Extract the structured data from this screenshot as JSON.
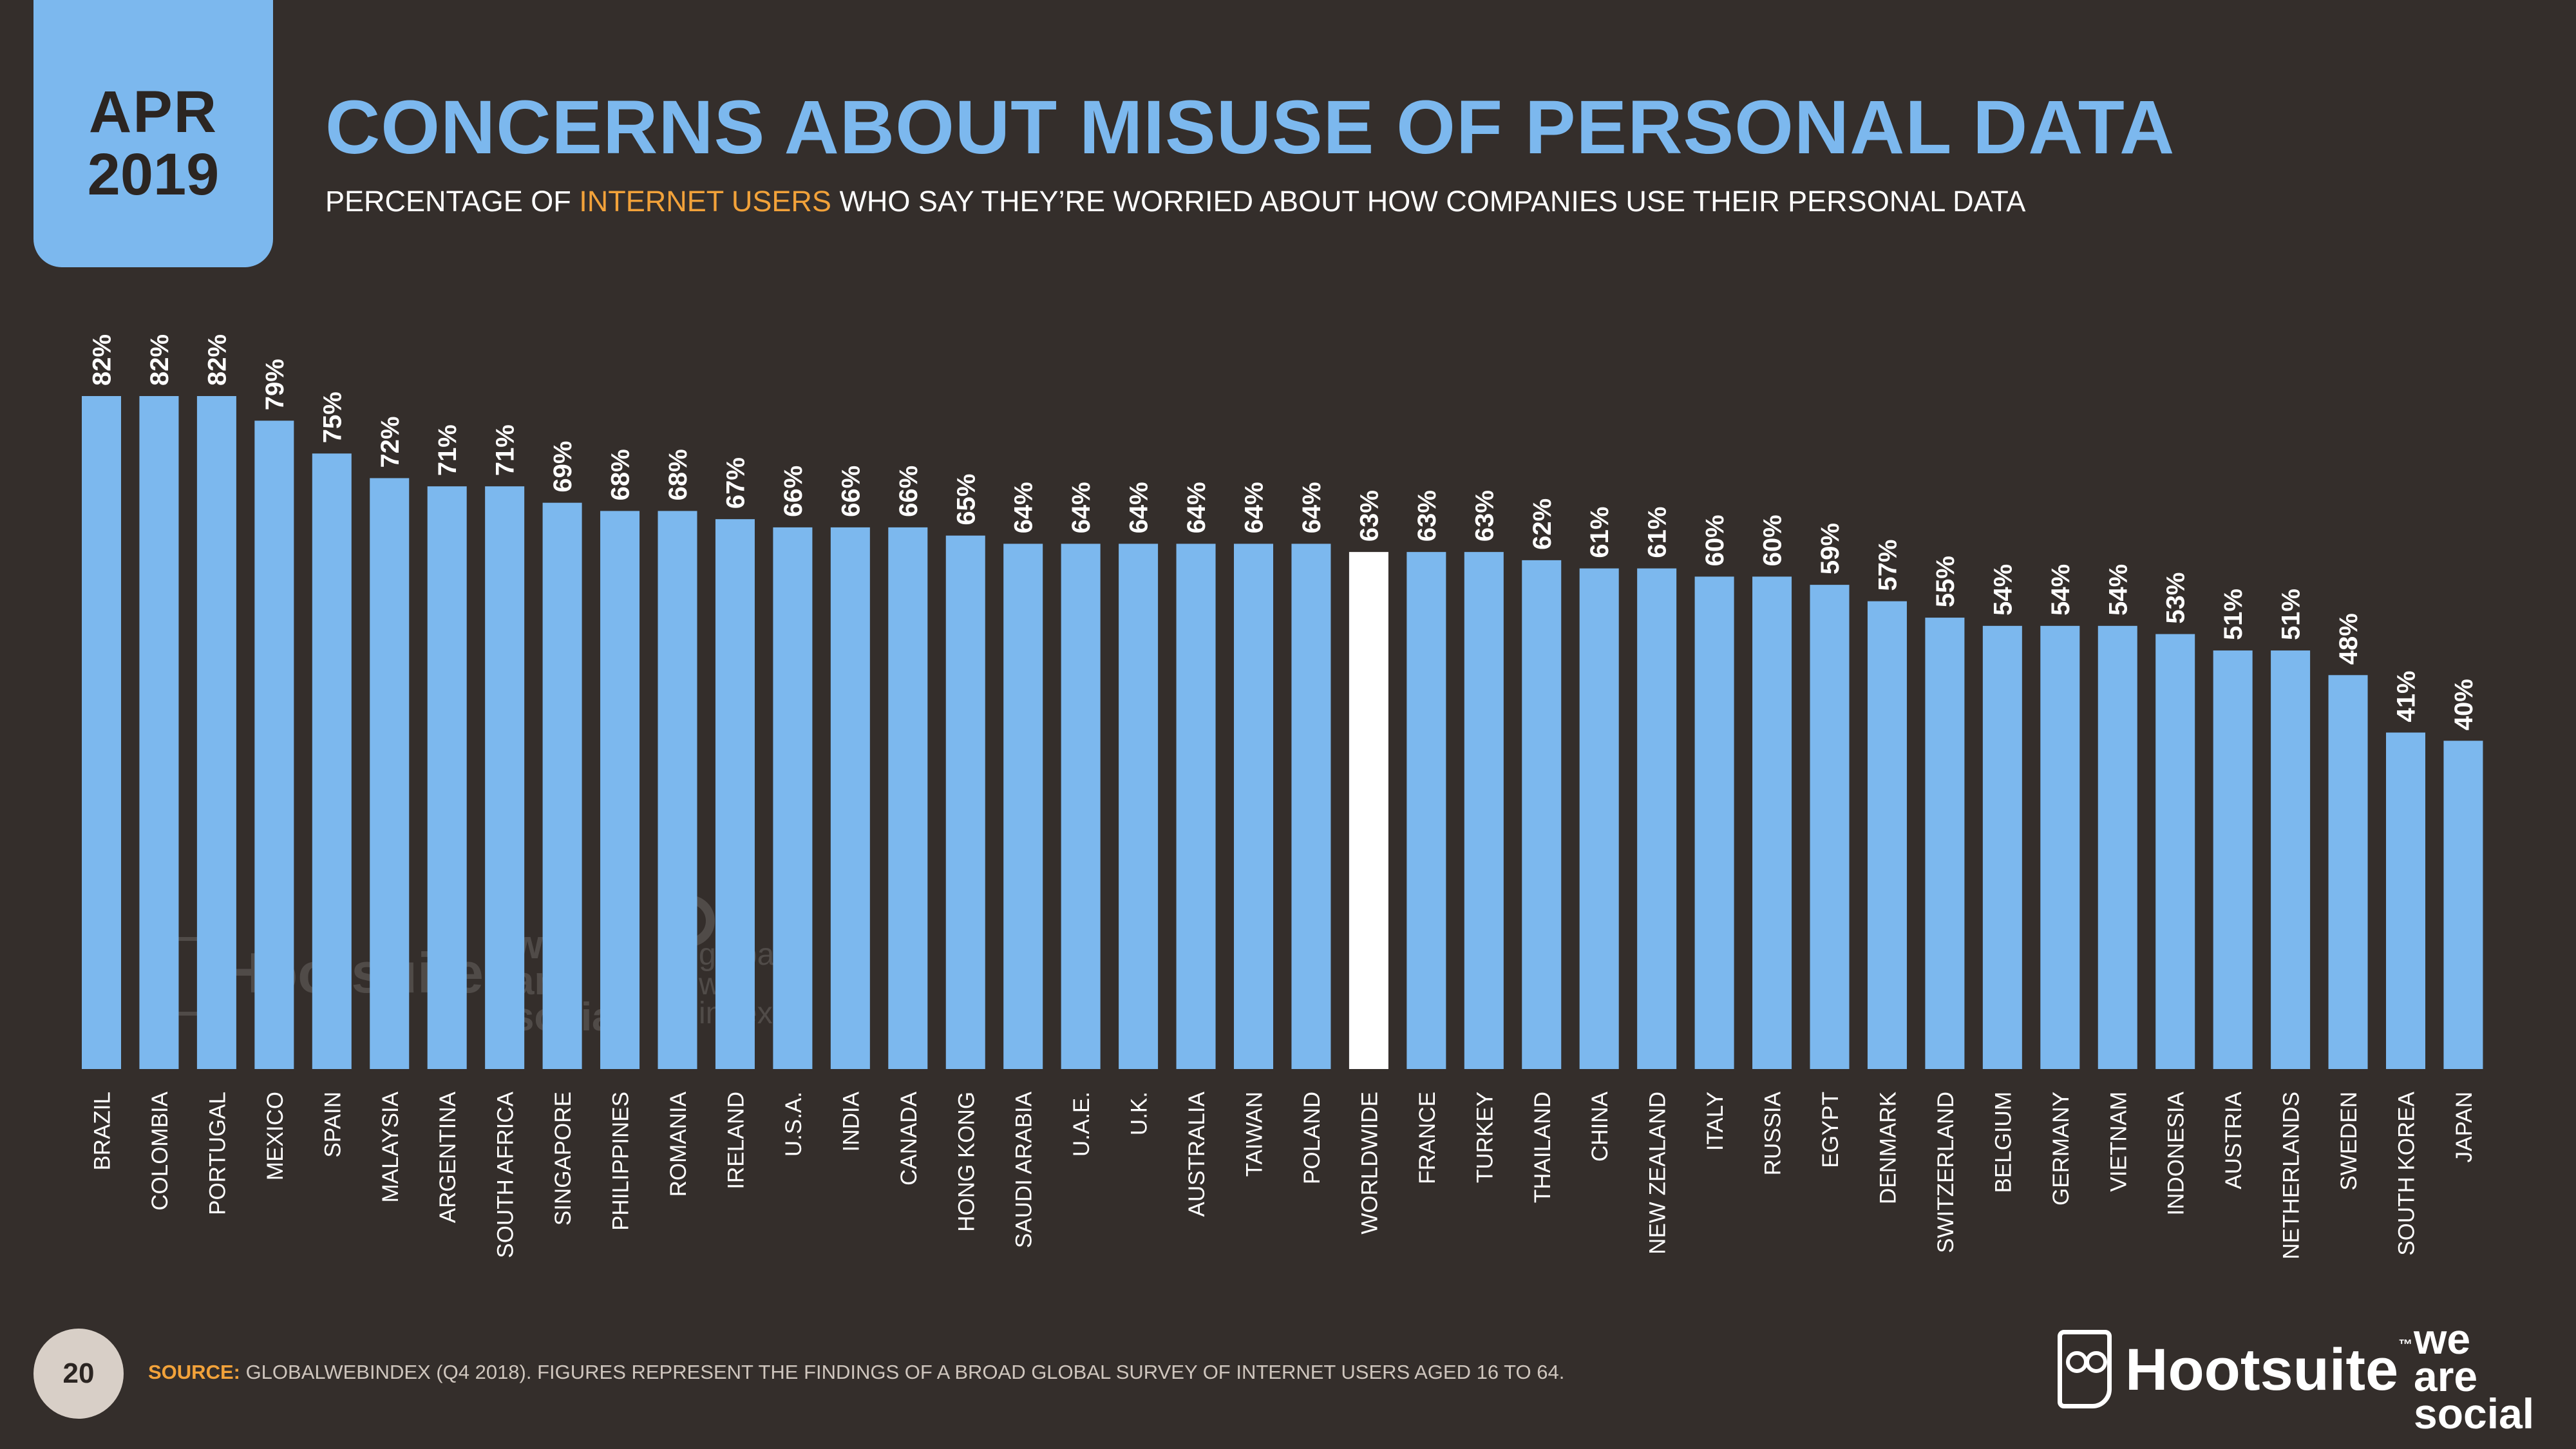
{
  "date_tab": {
    "month": "APR",
    "year": "2019"
  },
  "title": "CONCERNS ABOUT MISUSE OF PERSONAL DATA",
  "subtitle": {
    "before": "PERCENTAGE OF ",
    "highlight": "INTERNET USERS",
    "after": " WHO SAY THEY’RE WORRIED ABOUT HOW COMPANIES USE THEIR PERSONAL DATA"
  },
  "watermarks": {
    "hootsuite": "Hootsuite",
    "we_are_social": [
      "we",
      "are",
      "social"
    ],
    "globalwebindex": [
      "global",
      "web",
      "index"
    ]
  },
  "footer": {
    "page_number": "20",
    "source_label": "SOURCE:",
    "source_text": " GLOBALWEBINDEX (Q4 2018). FIGURES REPRESENT THE FINDINGS OF A BROAD GLOBAL SURVEY OF INTERNET USERS AGED 16 TO 64.",
    "logo_hootsuite": "Hootsuite",
    "logo_tm": "™",
    "logo_was": [
      "we",
      "are",
      "social"
    ]
  },
  "colors": {
    "bar": "#7cb8ee",
    "highlight_bar": "#ffffff",
    "background": "#342e2b",
    "accent": "#f2a23a"
  },
  "chart_data": {
    "type": "bar",
    "title": "CONCERNS ABOUT MISUSE OF PERSONAL DATA",
    "unit": "%",
    "highlight": "WORLDWIDE",
    "categories": [
      "BRAZIL",
      "COLOMBIA",
      "PORTUGAL",
      "MEXICO",
      "SPAIN",
      "MALAYSIA",
      "ARGENTINA",
      "SOUTH AFRICA",
      "SINGAPORE",
      "PHILIPPINES",
      "ROMANIA",
      "IRELAND",
      "U.S.A.",
      "INDIA",
      "CANADA",
      "HONG KONG",
      "SAUDI ARABIA",
      "U.A.E.",
      "U.K.",
      "AUSTRALIA",
      "TAIWAN",
      "POLAND",
      "WORLDWIDE",
      "FRANCE",
      "TURKEY",
      "THAILAND",
      "CHINA",
      "NEW ZEALAND",
      "ITALY",
      "RUSSIA",
      "EGYPT",
      "DENMARK",
      "SWITZERLAND",
      "BELGIUM",
      "GERMANY",
      "VIETNAM",
      "INDONESIA",
      "AUSTRIA",
      "NETHERLANDS",
      "SWEDEN",
      "SOUTH KOREA",
      "JAPAN"
    ],
    "values": [
      82,
      82,
      82,
      79,
      75,
      72,
      71,
      71,
      69,
      68,
      68,
      67,
      66,
      66,
      66,
      65,
      64,
      64,
      64,
      64,
      64,
      64,
      63,
      63,
      63,
      62,
      61,
      61,
      60,
      60,
      59,
      57,
      55,
      54,
      54,
      54,
      53,
      51,
      51,
      48,
      41,
      40
    ],
    "labels": [
      "82%",
      "82%",
      "82%",
      "79%",
      "75%",
      "72%",
      "71%",
      "71%",
      "69%",
      "68%",
      "68%",
      "67%",
      "66%",
      "66%",
      "66%",
      "65%",
      "64%",
      "64%",
      "64%",
      "64%",
      "64%",
      "64%",
      "63%",
      "63%",
      "63%",
      "62%",
      "61%",
      "61%",
      "60%",
      "60%",
      "59%",
      "57%",
      "55%",
      "54%",
      "54%",
      "54%",
      "53%",
      "51%",
      "51%",
      "48%",
      "41%",
      "40%"
    ],
    "ylim": [
      0,
      82
    ]
  }
}
